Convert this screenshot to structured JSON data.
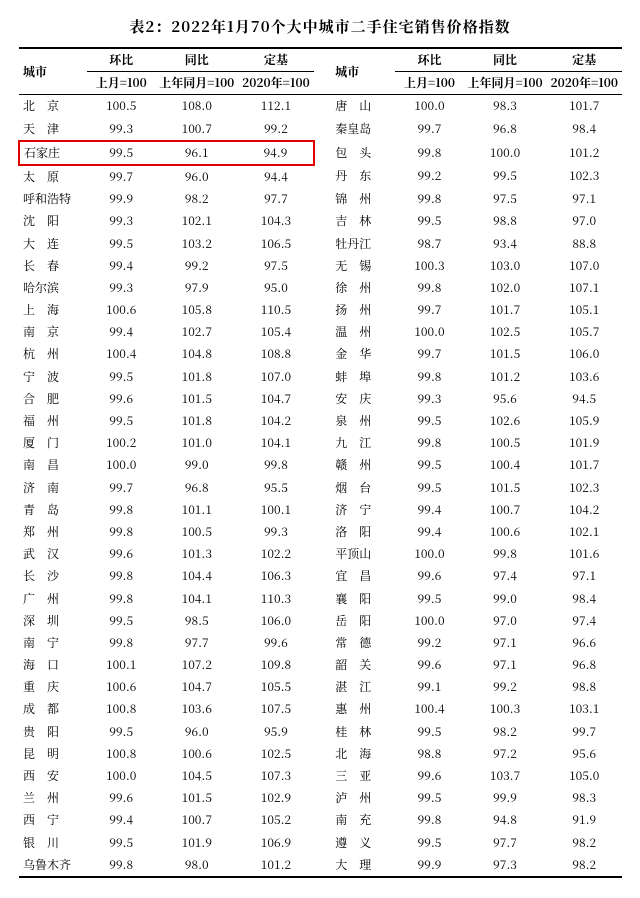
{
  "title": "表2：2022年1月70个大中城市二手住宅销售价格指数",
  "header": {
    "city": "城市",
    "mom": "环比",
    "yoy": "同比",
    "base": "定基",
    "mom_sub": "上月=100",
    "yoy_sub": "上年同月=100",
    "base_sub": "2020年=100"
  },
  "highlight_row_index": 2,
  "highlight_color": "#e00000",
  "rowsL": [
    {
      "c": "北　京",
      "v": [
        "100.5",
        "108.0",
        "112.1"
      ]
    },
    {
      "c": "天　津",
      "v": [
        "99.3",
        "100.7",
        "99.2"
      ]
    },
    {
      "c": "石家庄",
      "v": [
        "99.5",
        "96.1",
        "94.9"
      ]
    },
    {
      "c": "太　原",
      "v": [
        "99.7",
        "96.0",
        "94.4"
      ]
    },
    {
      "c": "呼和浩特",
      "v": [
        "99.9",
        "98.2",
        "97.7"
      ]
    },
    {
      "c": "沈　阳",
      "v": [
        "99.3",
        "102.1",
        "104.3"
      ]
    },
    {
      "c": "大　连",
      "v": [
        "99.5",
        "103.2",
        "106.5"
      ]
    },
    {
      "c": "长　春",
      "v": [
        "99.4",
        "99.2",
        "97.5"
      ]
    },
    {
      "c": "哈尔滨",
      "v": [
        "99.3",
        "97.9",
        "95.0"
      ]
    },
    {
      "c": "上　海",
      "v": [
        "100.6",
        "105.8",
        "110.5"
      ]
    },
    {
      "c": "南　京",
      "v": [
        "99.4",
        "102.7",
        "105.4"
      ]
    },
    {
      "c": "杭　州",
      "v": [
        "100.4",
        "104.8",
        "108.8"
      ]
    },
    {
      "c": "宁　波",
      "v": [
        "99.5",
        "101.8",
        "107.0"
      ]
    },
    {
      "c": "合　肥",
      "v": [
        "99.6",
        "101.5",
        "104.7"
      ]
    },
    {
      "c": "福　州",
      "v": [
        "99.5",
        "101.8",
        "104.2"
      ]
    },
    {
      "c": "厦　门",
      "v": [
        "100.2",
        "101.0",
        "104.1"
      ]
    },
    {
      "c": "南　昌",
      "v": [
        "100.0",
        "99.0",
        "99.8"
      ]
    },
    {
      "c": "济　南",
      "v": [
        "99.7",
        "96.8",
        "95.5"
      ]
    },
    {
      "c": "青　岛",
      "v": [
        "99.8",
        "101.1",
        "100.1"
      ]
    },
    {
      "c": "郑　州",
      "v": [
        "99.8",
        "100.5",
        "99.3"
      ]
    },
    {
      "c": "武　汉",
      "v": [
        "99.6",
        "101.3",
        "102.2"
      ]
    },
    {
      "c": "长　沙",
      "v": [
        "99.8",
        "104.4",
        "106.3"
      ]
    },
    {
      "c": "广　州",
      "v": [
        "99.8",
        "104.1",
        "110.3"
      ]
    },
    {
      "c": "深　圳",
      "v": [
        "99.5",
        "98.5",
        "106.0"
      ]
    },
    {
      "c": "南　宁",
      "v": [
        "99.8",
        "97.7",
        "99.6"
      ]
    },
    {
      "c": "海　口",
      "v": [
        "100.1",
        "107.2",
        "109.8"
      ]
    },
    {
      "c": "重　庆",
      "v": [
        "100.6",
        "104.7",
        "105.5"
      ]
    },
    {
      "c": "成　都",
      "v": [
        "100.8",
        "103.6",
        "107.5"
      ]
    },
    {
      "c": "贵　阳",
      "v": [
        "99.5",
        "96.0",
        "95.9"
      ]
    },
    {
      "c": "昆　明",
      "v": [
        "100.8",
        "100.6",
        "102.5"
      ]
    },
    {
      "c": "西　安",
      "v": [
        "100.0",
        "104.5",
        "107.3"
      ]
    },
    {
      "c": "兰　州",
      "v": [
        "99.6",
        "101.5",
        "102.9"
      ]
    },
    {
      "c": "西　宁",
      "v": [
        "99.4",
        "100.7",
        "105.2"
      ]
    },
    {
      "c": "银　川",
      "v": [
        "99.5",
        "101.9",
        "106.9"
      ]
    },
    {
      "c": "乌鲁木齐",
      "v": [
        "99.8",
        "98.0",
        "101.2"
      ]
    }
  ],
  "rowsR": [
    {
      "c": "唐　山",
      "v": [
        "100.0",
        "98.3",
        "101.7"
      ]
    },
    {
      "c": "秦皇岛",
      "v": [
        "99.7",
        "96.8",
        "98.4"
      ]
    },
    {
      "c": "包　头",
      "v": [
        "99.8",
        "100.0",
        "101.2"
      ]
    },
    {
      "c": "丹　东",
      "v": [
        "99.2",
        "99.5",
        "102.3"
      ]
    },
    {
      "c": "锦　州",
      "v": [
        "99.8",
        "97.5",
        "97.1"
      ]
    },
    {
      "c": "吉　林",
      "v": [
        "99.5",
        "98.8",
        "97.0"
      ]
    },
    {
      "c": "牡丹江",
      "v": [
        "98.7",
        "93.4",
        "88.8"
      ]
    },
    {
      "c": "无　锡",
      "v": [
        "100.3",
        "103.0",
        "107.0"
      ]
    },
    {
      "c": "徐　州",
      "v": [
        "99.8",
        "102.0",
        "107.1"
      ]
    },
    {
      "c": "扬　州",
      "v": [
        "99.7",
        "101.7",
        "105.1"
      ]
    },
    {
      "c": "温　州",
      "v": [
        "100.0",
        "102.5",
        "105.7"
      ]
    },
    {
      "c": "金　华",
      "v": [
        "99.7",
        "101.5",
        "106.0"
      ]
    },
    {
      "c": "蚌　埠",
      "v": [
        "99.8",
        "101.2",
        "103.6"
      ]
    },
    {
      "c": "安　庆",
      "v": [
        "99.3",
        "95.6",
        "94.5"
      ]
    },
    {
      "c": "泉　州",
      "v": [
        "99.5",
        "102.6",
        "105.9"
      ]
    },
    {
      "c": "九　江",
      "v": [
        "99.8",
        "100.5",
        "101.9"
      ]
    },
    {
      "c": "赣　州",
      "v": [
        "99.5",
        "100.4",
        "101.7"
      ]
    },
    {
      "c": "烟　台",
      "v": [
        "99.5",
        "101.5",
        "102.3"
      ]
    },
    {
      "c": "济　宁",
      "v": [
        "99.4",
        "100.7",
        "104.2"
      ]
    },
    {
      "c": "洛　阳",
      "v": [
        "99.4",
        "100.6",
        "102.1"
      ]
    },
    {
      "c": "平顶山",
      "v": [
        "100.0",
        "99.8",
        "101.6"
      ]
    },
    {
      "c": "宜　昌",
      "v": [
        "99.6",
        "97.4",
        "97.1"
      ]
    },
    {
      "c": "襄　阳",
      "v": [
        "99.5",
        "99.0",
        "98.4"
      ]
    },
    {
      "c": "岳　阳",
      "v": [
        "100.0",
        "97.0",
        "97.4"
      ]
    },
    {
      "c": "常　德",
      "v": [
        "99.2",
        "97.1",
        "96.6"
      ]
    },
    {
      "c": "韶　关",
      "v": [
        "99.6",
        "97.1",
        "96.8"
      ]
    },
    {
      "c": "湛　江",
      "v": [
        "99.1",
        "99.2",
        "98.8"
      ]
    },
    {
      "c": "惠　州",
      "v": [
        "100.4",
        "100.3",
        "103.1"
      ]
    },
    {
      "c": "桂　林",
      "v": [
        "99.5",
        "98.2",
        "99.7"
      ]
    },
    {
      "c": "北　海",
      "v": [
        "98.8",
        "97.2",
        "95.6"
      ]
    },
    {
      "c": "三　亚",
      "v": [
        "99.6",
        "103.7",
        "105.0"
      ]
    },
    {
      "c": "泸　州",
      "v": [
        "99.5",
        "99.9",
        "98.3"
      ]
    },
    {
      "c": "南　充",
      "v": [
        "99.8",
        "94.8",
        "91.9"
      ]
    },
    {
      "c": "遵　义",
      "v": [
        "99.5",
        "97.7",
        "98.2"
      ]
    },
    {
      "c": "大　理",
      "v": [
        "99.9",
        "97.3",
        "98.2"
      ]
    }
  ]
}
